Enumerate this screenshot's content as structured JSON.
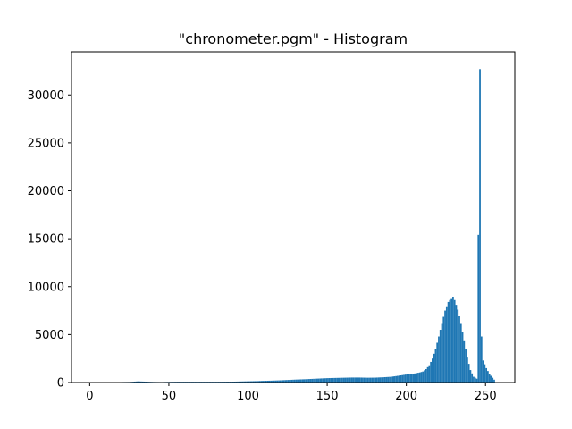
{
  "chart_data": {
    "type": "bar",
    "title": "\"chronometer.pgm\" - Histogram",
    "xlabel": "",
    "ylabel": "",
    "xlim": [
      -11.5,
      268.5
    ],
    "ylim": [
      0,
      34500
    ],
    "x_ticks": [
      0,
      50,
      100,
      150,
      200,
      250
    ],
    "y_ticks": [
      0,
      5000,
      10000,
      15000,
      20000,
      25000,
      30000
    ],
    "grid": false,
    "color": "#1f77b4",
    "bin_width": 1,
    "bins": [
      {
        "x": 20,
        "y": 50
      },
      {
        "x": 25,
        "y": 60
      },
      {
        "x": 30,
        "y": 120
      },
      {
        "x": 35,
        "y": 90
      },
      {
        "x": 40,
        "y": 60
      },
      {
        "x": 45,
        "y": 50
      },
      {
        "x": 50,
        "y": 70
      },
      {
        "x": 55,
        "y": 80
      },
      {
        "x": 60,
        "y": 80
      },
      {
        "x": 70,
        "y": 80
      },
      {
        "x": 80,
        "y": 80
      },
      {
        "x": 90,
        "y": 90
      },
      {
        "x": 100,
        "y": 130
      },
      {
        "x": 105,
        "y": 150
      },
      {
        "x": 110,
        "y": 180
      },
      {
        "x": 115,
        "y": 200
      },
      {
        "x": 120,
        "y": 230
      },
      {
        "x": 125,
        "y": 270
      },
      {
        "x": 130,
        "y": 310
      },
      {
        "x": 135,
        "y": 340
      },
      {
        "x": 140,
        "y": 380
      },
      {
        "x": 145,
        "y": 420
      },
      {
        "x": 150,
        "y": 460
      },
      {
        "x": 155,
        "y": 480
      },
      {
        "x": 160,
        "y": 500
      },
      {
        "x": 165,
        "y": 520
      },
      {
        "x": 170,
        "y": 520
      },
      {
        "x": 175,
        "y": 500
      },
      {
        "x": 180,
        "y": 510
      },
      {
        "x": 185,
        "y": 550
      },
      {
        "x": 190,
        "y": 600
      },
      {
        "x": 195,
        "y": 720
      },
      {
        "x": 200,
        "y": 850
      },
      {
        "x": 205,
        "y": 950
      },
      {
        "x": 208,
        "y": 1050
      },
      {
        "x": 210,
        "y": 1150
      },
      {
        "x": 212,
        "y": 1400
      },
      {
        "x": 214,
        "y": 1800
      },
      {
        "x": 216,
        "y": 2500
      },
      {
        "x": 218,
        "y": 3500
      },
      {
        "x": 220,
        "y": 4800
      },
      {
        "x": 222,
        "y": 6200
      },
      {
        "x": 224,
        "y": 7500
      },
      {
        "x": 226,
        "y": 8400
      },
      {
        "x": 228,
        "y": 8800
      },
      {
        "x": 229,
        "y": 8950
      },
      {
        "x": 230,
        "y": 8600
      },
      {
        "x": 232,
        "y": 7600
      },
      {
        "x": 234,
        "y": 6200
      },
      {
        "x": 236,
        "y": 4400
      },
      {
        "x": 238,
        "y": 2600
      },
      {
        "x": 240,
        "y": 1300
      },
      {
        "x": 242,
        "y": 600
      },
      {
        "x": 244,
        "y": 400
      },
      {
        "x": 245,
        "y": 15400
      },
      {
        "x": 246,
        "y": 32700
      },
      {
        "x": 247,
        "y": 4800
      },
      {
        "x": 248,
        "y": 2300
      },
      {
        "x": 250,
        "y": 1500
      },
      {
        "x": 252,
        "y": 900
      },
      {
        "x": 254,
        "y": 500
      },
      {
        "x": 255,
        "y": 300
      }
    ]
  }
}
